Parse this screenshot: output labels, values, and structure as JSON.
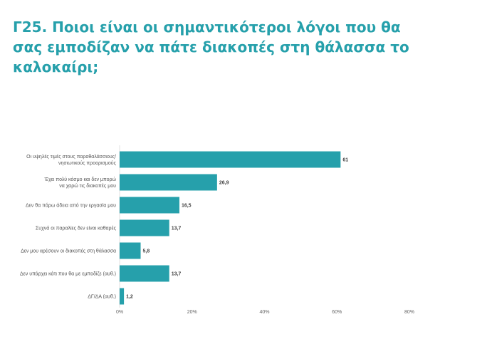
{
  "title": "Γ25. Ποιοι είναι οι σημαντικότεροι λόγοι που θα σας εμποδίζαν να πάτε διακοπές στη θάλασσα το καλοκαίρι;",
  "chart_data": {
    "type": "bar",
    "orientation": "horizontal",
    "categories": [
      [
        "Οι υψηλές τιμές στους παραθαλάσσιους/",
        "νησιωτικούς προορισμούς"
      ],
      [
        "Έχει πολύ κόσμο και δεν μπορώ",
        "να χαρώ τις διακοπές μου"
      ],
      [
        "Δεν θα πάρω άδεια από την εργασία μου"
      ],
      [
        "Συχνά οι παραλίες δεν είναι καθαρές"
      ],
      [
        "Δεν μου αρέσουν οι διακοπές στη θάλασσα"
      ],
      [
        "Δεν υπάρχει κάτι που θα με εμποδίζε (αυθ.)"
      ],
      [
        "ΔΓ/ΔΑ (αυθ.)"
      ]
    ],
    "values": [
      61,
      26.9,
      16.5,
      13.7,
      5.8,
      13.7,
      1.2
    ],
    "value_labels": [
      "61",
      "26,9",
      "16,5",
      "13,7",
      "5,8",
      "13,7",
      "1,2"
    ],
    "xlim": [
      0,
      80
    ],
    "xticks": [
      "0%",
      "20%",
      "40%",
      "60%",
      "80%"
    ],
    "bar_color": "#26A0AB",
    "grid": false,
    "legend": "none"
  }
}
